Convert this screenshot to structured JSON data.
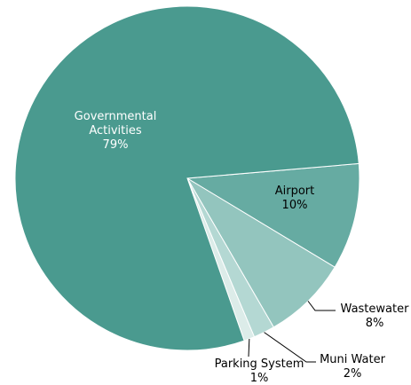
{
  "chart_data": {
    "type": "pie",
    "title": "",
    "slices": [
      {
        "label": "Governmental\nActivities",
        "pct_label": "79%",
        "value": 79,
        "color": "#4a9a8f"
      },
      {
        "label": "Airport",
        "pct_label": "10%",
        "value": 10,
        "color": "#66aba2"
      },
      {
        "label": "Wastewater",
        "pct_label": "8%",
        "value": 8,
        "color": "#93c5be"
      },
      {
        "label": "Muni Water",
        "pct_label": "2%",
        "value": 2,
        "color": "#b4d8d3"
      },
      {
        "label": "Parking System",
        "pct_label": "1%",
        "value": 1,
        "color": "#dcece9"
      }
    ],
    "start_angle_deg": 4.9,
    "direction": "clockwise",
    "legend": "none"
  }
}
